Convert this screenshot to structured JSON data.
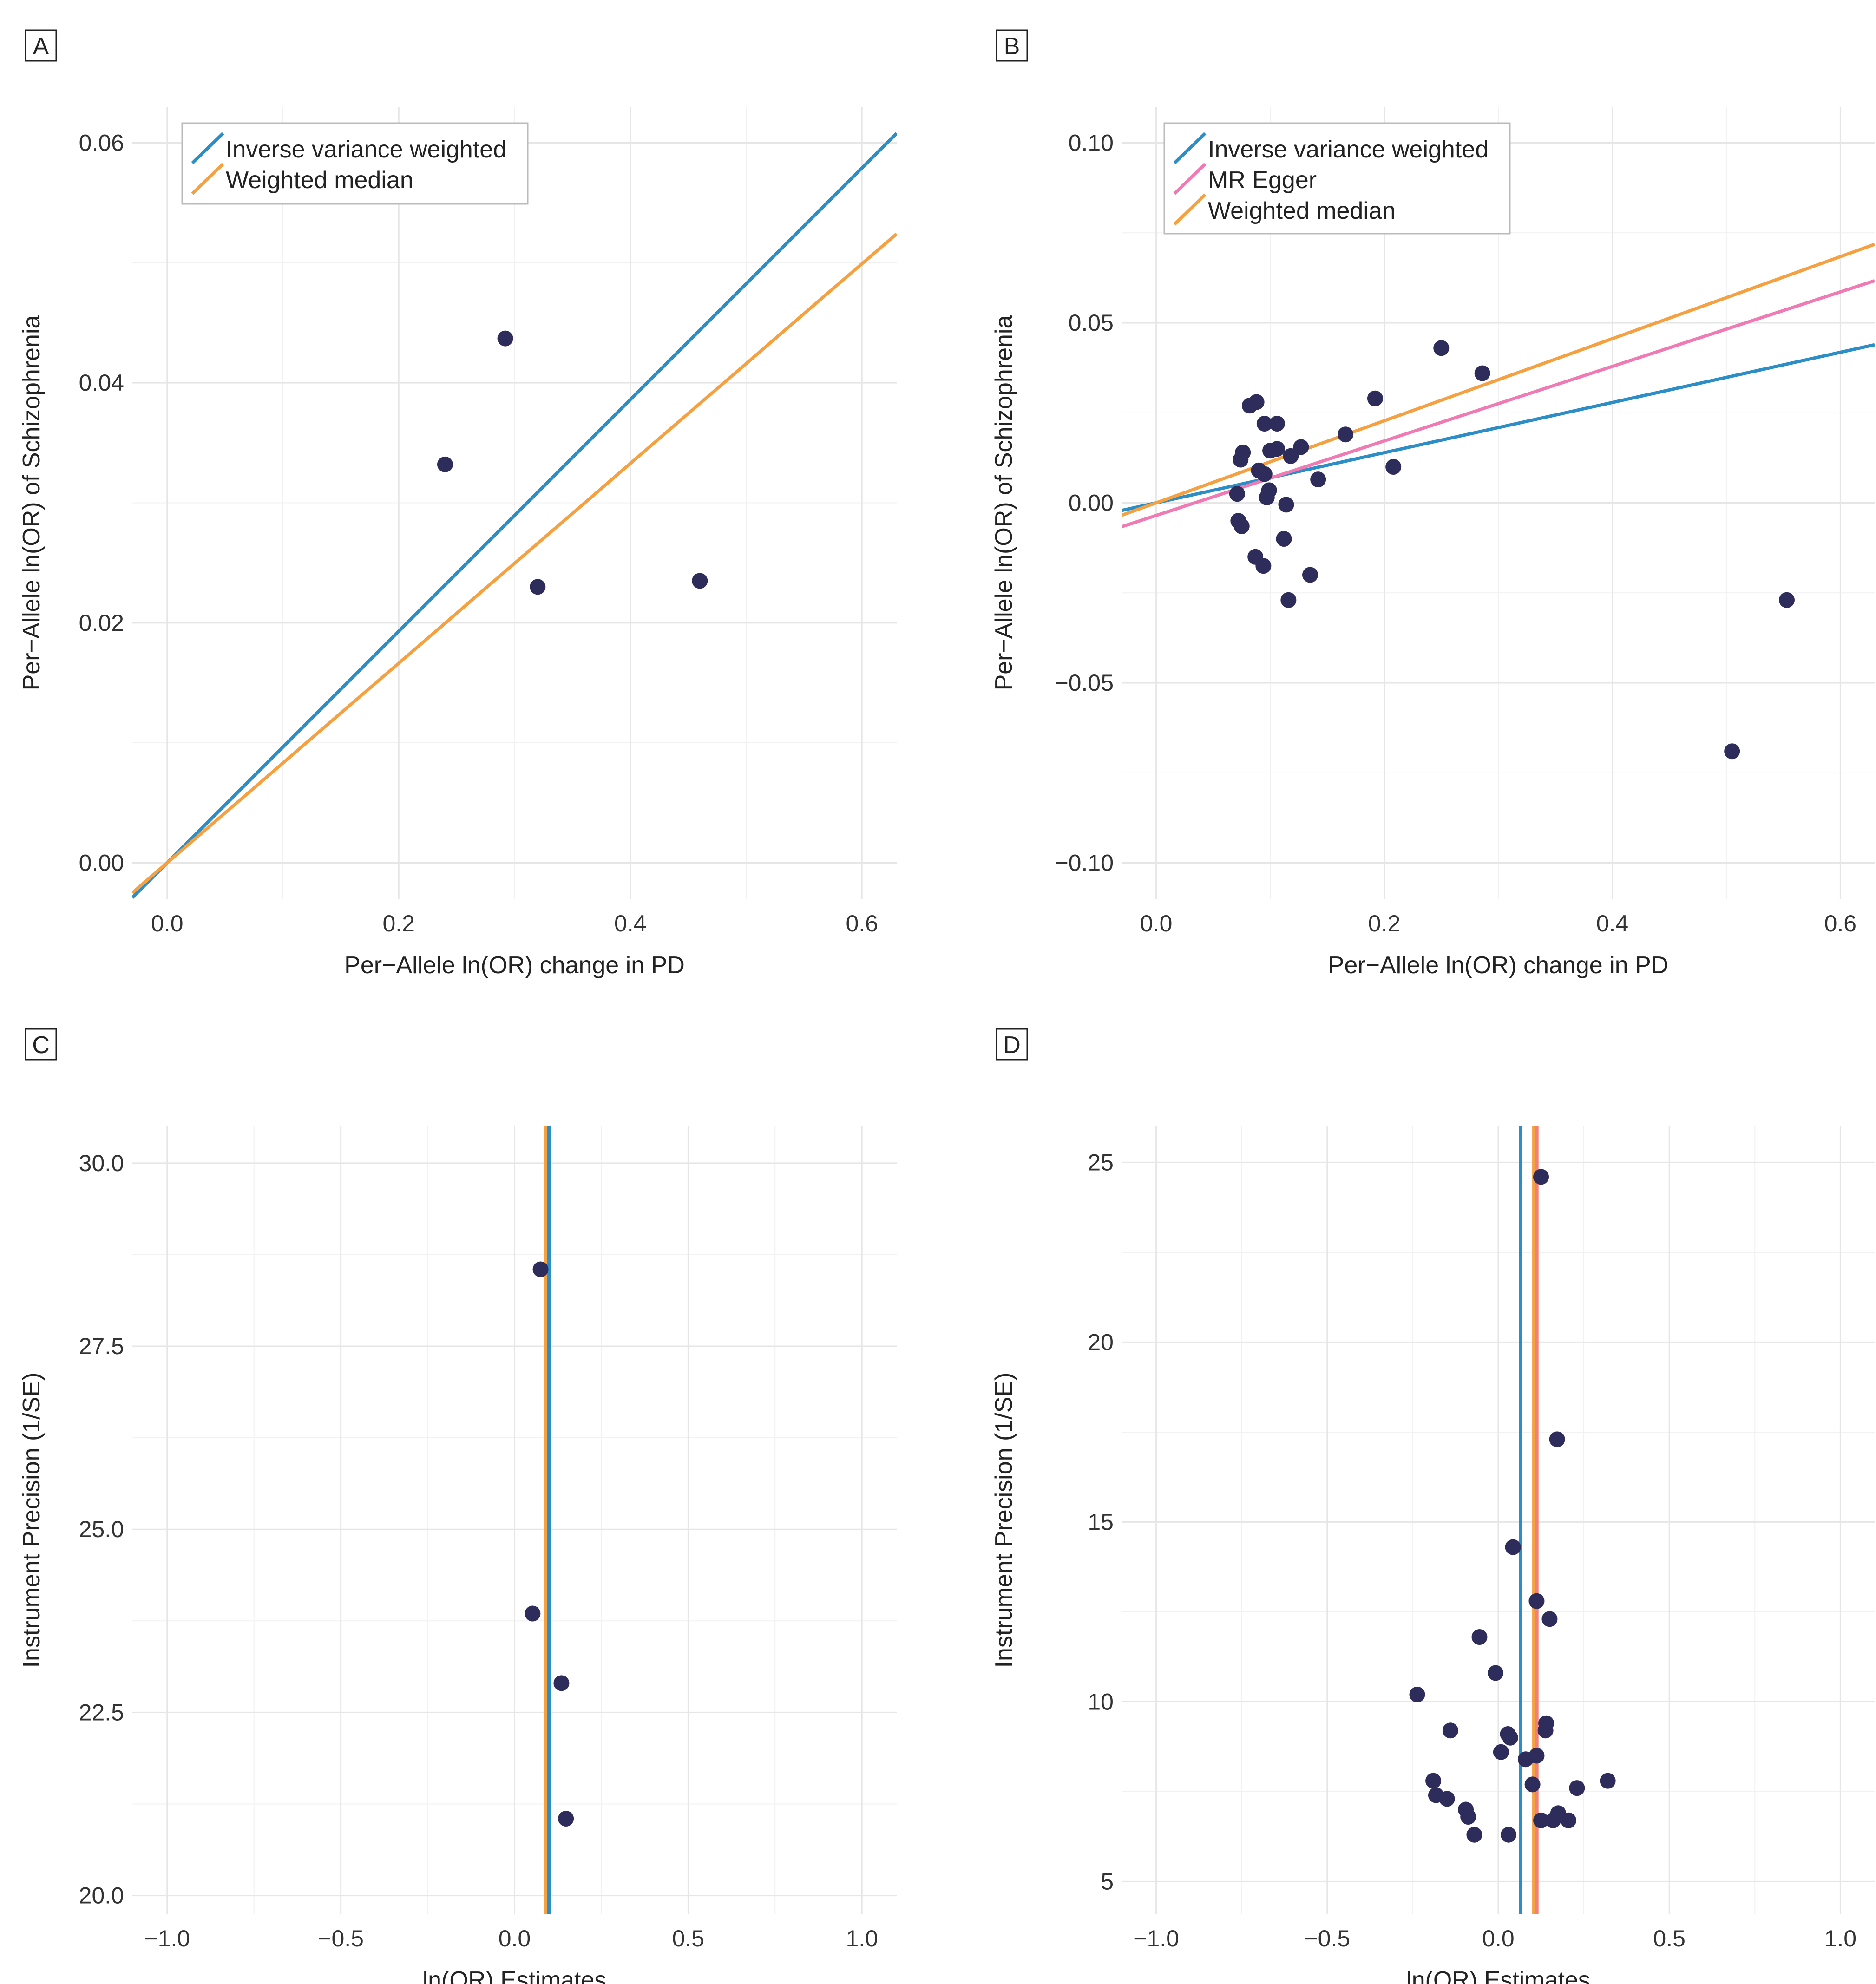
{
  "colors": {
    "ivw": "#2b8ec6",
    "egger": "#f07ab4",
    "wmedian": "#f5a142",
    "egger_vertical": "#f08078",
    "point": "#2e2c5a"
  },
  "chart_data": [
    {
      "panel": "A",
      "type": "scatter",
      "xlabel": "Per−Allele ln(OR) change in PD",
      "ylabel": "Per−Allele ln(OR) of Schizophrenia",
      "xlim": [
        -0.03,
        0.63
      ],
      "ylim": [
        -0.003,
        0.063
      ],
      "xticks": [
        0.0,
        0.2,
        0.4,
        0.6
      ],
      "xtick_labels": [
        "0.0",
        "0.2",
        "0.4",
        "0.6"
      ],
      "yticks": [
        0.0,
        0.02,
        0.04,
        0.06
      ],
      "ytick_labels": [
        "0.00",
        "0.02",
        "0.04",
        "0.06"
      ],
      "legend": [
        "Inverse variance weighted",
        "Weighted median"
      ],
      "lines": [
        {
          "name": "Inverse variance weighted",
          "color_key": "ivw",
          "kind": "slope",
          "intercept": 0,
          "slope": 0.0965
        },
        {
          "name": "Weighted median",
          "color_key": "wmedian",
          "kind": "slope",
          "intercept": 0,
          "slope": 0.0832
        }
      ],
      "points": [
        {
          "x": 0.24,
          "y": 0.0332
        },
        {
          "x": 0.292,
          "y": 0.0437
        },
        {
          "x": 0.32,
          "y": 0.023
        },
        {
          "x": 0.46,
          "y": 0.0235
        }
      ]
    },
    {
      "panel": "B",
      "type": "scatter",
      "xlabel": "Per−Allele ln(OR) change in PD",
      "ylabel": "Per−Allele ln(OR) of Schizophrenia",
      "xlim": [
        -0.03,
        0.63
      ],
      "ylim": [
        -0.11,
        0.11
      ],
      "xticks": [
        0.0,
        0.2,
        0.4,
        0.6
      ],
      "xtick_labels": [
        "0.0",
        "0.2",
        "0.4",
        "0.6"
      ],
      "yticks": [
        -0.1,
        -0.05,
        0.0,
        0.05,
        0.1
      ],
      "ytick_labels": [
        "−0.10",
        "−0.05",
        "0.00",
        "0.05",
        "0.10"
      ],
      "legend": [
        "Inverse variance weighted",
        "MR Egger",
        "Weighted median"
      ],
      "lines": [
        {
          "name": "Inverse variance weighted",
          "color_key": "ivw",
          "kind": "slope",
          "intercept": 0,
          "slope": 0.0697
        },
        {
          "name": "MR Egger",
          "color_key": "egger",
          "kind": "slope",
          "intercept": -0.0035,
          "slope": 0.1035
        },
        {
          "name": "Weighted median",
          "color_key": "wmedian",
          "kind": "slope",
          "intercept": 0,
          "slope": 0.114
        }
      ],
      "points": [
        {
          "x": 0.082,
          "y": 0.027
        },
        {
          "x": 0.088,
          "y": 0.028
        },
        {
          "x": 0.095,
          "y": 0.022
        },
        {
          "x": 0.106,
          "y": 0.022
        },
        {
          "x": 0.076,
          "y": 0.014
        },
        {
          "x": 0.074,
          "y": 0.012
        },
        {
          "x": 0.1,
          "y": 0.0145
        },
        {
          "x": 0.106,
          "y": 0.015
        },
        {
          "x": 0.118,
          "y": 0.013
        },
        {
          "x": 0.127,
          "y": 0.0155
        },
        {
          "x": 0.166,
          "y": 0.019
        },
        {
          "x": 0.192,
          "y": 0.029
        },
        {
          "x": 0.25,
          "y": 0.043
        },
        {
          "x": 0.286,
          "y": 0.036
        },
        {
          "x": 0.208,
          "y": 0.01
        },
        {
          "x": 0.142,
          "y": 0.0065
        },
        {
          "x": 0.09,
          "y": 0.009
        },
        {
          "x": 0.095,
          "y": 0.008
        },
        {
          "x": 0.071,
          "y": 0.0025
        },
        {
          "x": 0.099,
          "y": 0.0035
        },
        {
          "x": 0.097,
          "y": 0.0015
        },
        {
          "x": 0.114,
          "y": -0.0005
        },
        {
          "x": 0.072,
          "y": -0.005
        },
        {
          "x": 0.075,
          "y": -0.0065
        },
        {
          "x": 0.112,
          "y": -0.01
        },
        {
          "x": 0.087,
          "y": -0.015
        },
        {
          "x": 0.094,
          "y": -0.0175
        },
        {
          "x": 0.135,
          "y": -0.02
        },
        {
          "x": 0.116,
          "y": -0.027
        },
        {
          "x": 0.553,
          "y": -0.027
        },
        {
          "x": 0.505,
          "y": -0.069
        }
      ]
    },
    {
      "panel": "C",
      "type": "scatter",
      "xlabel": "ln(OR) Estimates",
      "ylabel": "Instrument Precision (1/SE)",
      "xlim": [
        -1.1,
        1.1
      ],
      "ylim": [
        19.75,
        30.5
      ],
      "xticks": [
        -1.0,
        -0.5,
        0.0,
        0.5,
        1.0
      ],
      "xtick_labels": [
        "−1.0",
        "−0.5",
        "0.0",
        "0.5",
        "1.0"
      ],
      "yticks": [
        20.0,
        22.5,
        25.0,
        27.5,
        30.0
      ],
      "ytick_labels": [
        "20.0",
        "22.5",
        "25.0",
        "27.5",
        "30.0"
      ],
      "lines": [
        {
          "name": "Weighted median",
          "color_key": "wmedian",
          "kind": "vertical",
          "x": 0.089
        },
        {
          "name": "Inverse variance weighted",
          "color_key": "ivw",
          "kind": "vertical",
          "x": 0.099
        }
      ],
      "points": [
        {
          "x": 0.075,
          "y": 28.55
        },
        {
          "x": 0.052,
          "y": 23.85
        },
        {
          "x": 0.135,
          "y": 22.9
        },
        {
          "x": 0.148,
          "y": 21.05
        }
      ]
    },
    {
      "panel": "D",
      "type": "scatter",
      "xlabel": "ln(OR) Estimates",
      "ylabel": "Instrument Precision (1/SE)",
      "xlim": [
        -1.1,
        1.1
      ],
      "ylim": [
        4.1,
        26.0
      ],
      "xticks": [
        -1.0,
        -0.5,
        0.0,
        0.5,
        1.0
      ],
      "xtick_labels": [
        "−1.0",
        "−0.5",
        "0.0",
        "0.5",
        "1.0"
      ],
      "yticks": [
        5,
        10,
        15,
        20,
        25
      ],
      "ytick_labels": [
        "5",
        "10",
        "15",
        "20",
        "25"
      ],
      "lines": [
        {
          "name": "Inverse variance weighted",
          "color_key": "ivw",
          "kind": "vertical",
          "x": 0.065
        },
        {
          "name": "Weighted median",
          "color_key": "wmedian",
          "kind": "vertical",
          "x": 0.104
        },
        {
          "name": "MR Egger",
          "color_key": "egger_vertical",
          "kind": "vertical",
          "x": 0.113
        }
      ],
      "points": [
        {
          "x": 0.125,
          "y": 24.6
        },
        {
          "x": 0.172,
          "y": 17.3
        },
        {
          "x": 0.043,
          "y": 14.3
        },
        {
          "x": 0.112,
          "y": 12.8
        },
        {
          "x": 0.15,
          "y": 12.3
        },
        {
          "x": -0.055,
          "y": 11.8
        },
        {
          "x": -0.008,
          "y": 10.8
        },
        {
          "x": -0.237,
          "y": 10.2
        },
        {
          "x": -0.14,
          "y": 9.2
        },
        {
          "x": 0.14,
          "y": 9.4
        },
        {
          "x": 0.138,
          "y": 9.2
        },
        {
          "x": 0.028,
          "y": 9.1
        },
        {
          "x": 0.035,
          "y": 9.0
        },
        {
          "x": 0.008,
          "y": 8.6
        },
        {
          "x": 0.08,
          "y": 8.4
        },
        {
          "x": 0.112,
          "y": 8.5
        },
        {
          "x": -0.19,
          "y": 7.8
        },
        {
          "x": 0.1,
          "y": 7.7
        },
        {
          "x": 0.23,
          "y": 7.6
        },
        {
          "x": 0.32,
          "y": 7.8
        },
        {
          "x": -0.182,
          "y": 7.4
        },
        {
          "x": -0.15,
          "y": 7.3
        },
        {
          "x": -0.095,
          "y": 7.0
        },
        {
          "x": -0.088,
          "y": 6.8
        },
        {
          "x": 0.175,
          "y": 6.9
        },
        {
          "x": 0.125,
          "y": 6.7
        },
        {
          "x": 0.16,
          "y": 6.7
        },
        {
          "x": 0.205,
          "y": 6.7
        },
        {
          "x": -0.07,
          "y": 6.3
        },
        {
          "x": 0.03,
          "y": 6.3
        }
      ]
    }
  ]
}
